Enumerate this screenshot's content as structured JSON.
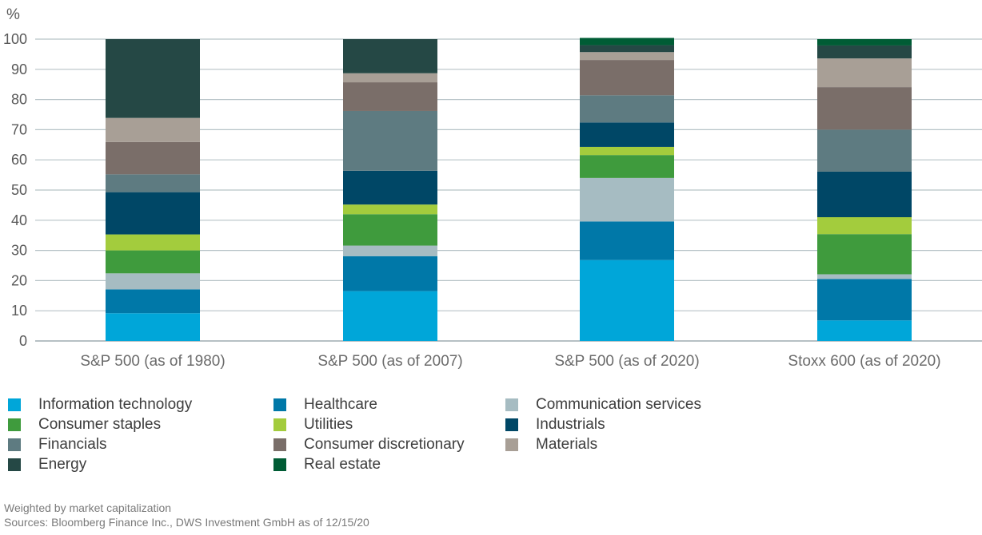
{
  "chart_data": {
    "type": "bar",
    "stacked": true,
    "y_unit_label": "%",
    "ylim": [
      0,
      100
    ],
    "yticks": [
      0,
      10,
      20,
      30,
      40,
      50,
      60,
      70,
      80,
      90,
      100
    ],
    "grid": true,
    "legend_position": "bottom",
    "categories": [
      "S&P 500 (as of 1980)",
      "S&P 500 (as of 2007)",
      "S&P 500 (as of 2020)",
      "Stoxx 600 (as of 2020)"
    ],
    "series": [
      {
        "name": "Information technology",
        "color": "#00a6d9",
        "values": [
          9.2,
          16.5,
          26.8,
          6.8
        ]
      },
      {
        "name": "Healthcare",
        "color": "#0078a8",
        "values": [
          7.9,
          11.6,
          12.8,
          13.7
        ]
      },
      {
        "name": "Communication services",
        "color": "#a6bcc2",
        "values": [
          5.3,
          3.5,
          14.4,
          1.6
        ]
      },
      {
        "name": "Consumer staples",
        "color": "#3f9b3d",
        "values": [
          7.6,
          10.4,
          7.6,
          13.3
        ]
      },
      {
        "name": "Utilities",
        "color": "#a3cc3d",
        "values": [
          5.3,
          3.2,
          2.7,
          5.6
        ]
      },
      {
        "name": "Industrials",
        "color": "#004766",
        "values": [
          14.0,
          11.2,
          8.1,
          15.1
        ]
      },
      {
        "name": "Financials",
        "color": "#5e7b81",
        "values": [
          5.9,
          19.8,
          9.0,
          13.9
        ]
      },
      {
        "name": "Consumer discretionary",
        "color": "#7a6e69",
        "values": [
          10.7,
          9.5,
          11.7,
          14.1
        ]
      },
      {
        "name": "Materials",
        "color": "#a89f96",
        "values": [
          8.0,
          3.0,
          2.6,
          9.5
        ]
      },
      {
        "name": "Energy",
        "color": "#254845",
        "values": [
          26.1,
          11.3,
          2.3,
          4.3
        ]
      },
      {
        "name": "Real estate",
        "color": "#005c35",
        "values": [
          0.0,
          0.0,
          2.4,
          2.1
        ]
      }
    ]
  },
  "notes": {
    "weighting": "Weighted by market capitalization",
    "sources": "Sources: Bloomberg Finance Inc., DWS Investment GmbH as of 12/15/20"
  }
}
